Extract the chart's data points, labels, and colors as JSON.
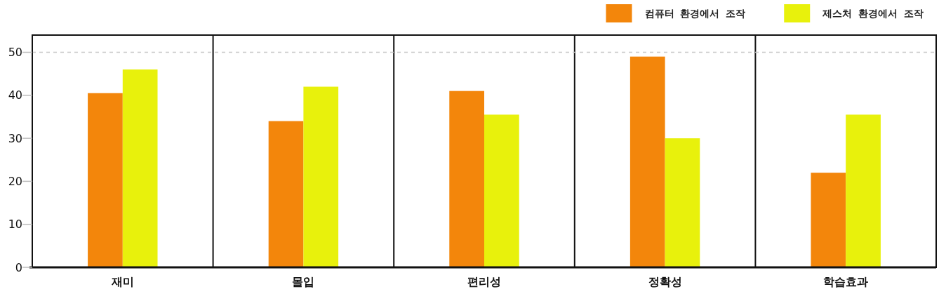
{
  "chart_data": {
    "type": "bar",
    "categories": [
      "재미",
      "몰입",
      "편리성",
      "정확성",
      "학습효과"
    ],
    "series": [
      {
        "name": "컴퓨터 환경에서 조작",
        "color": "#f3860b",
        "values": [
          40.5,
          34,
          41,
          49,
          22
        ]
      },
      {
        "name": "제스처 환경에서 조작",
        "color": "#e8f10c",
        "values": [
          46,
          42,
          35.5,
          30,
          35.5
        ]
      }
    ],
    "ylim": [
      0,
      54
    ],
    "yticks": [
      0,
      10,
      20,
      30,
      40,
      50
    ],
    "grid": "x",
    "legend": "top right",
    "ref_lines": [
      {
        "axis": "y",
        "value": 50,
        "color": "#c8c8c8",
        "line_style": "dashed"
      }
    ]
  }
}
